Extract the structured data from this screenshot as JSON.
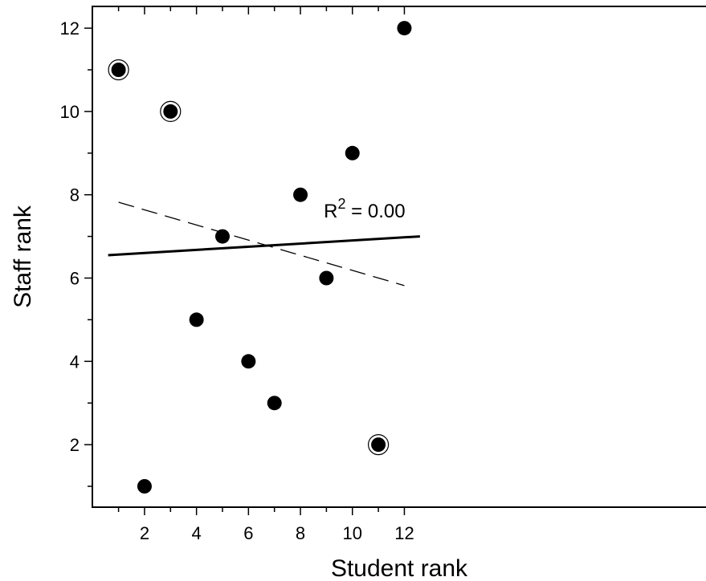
{
  "chart_data": {
    "type": "scatter",
    "xlabel": "Student rank",
    "ylabel": "Staff rank",
    "xlim": [
      0.5,
      12.5
    ],
    "ylim": [
      0.5,
      12.5
    ],
    "xticks": [
      2,
      4,
      6,
      8,
      10,
      12
    ],
    "yticks": [
      2,
      4,
      6,
      8,
      10,
      12
    ],
    "grid": false,
    "points": [
      {
        "x": 1,
        "y": 11,
        "circled": true
      },
      {
        "x": 2,
        "y": 1,
        "circled": false
      },
      {
        "x": 3,
        "y": 10,
        "circled": true
      },
      {
        "x": 4,
        "y": 5,
        "circled": false
      },
      {
        "x": 5,
        "y": 7,
        "circled": false
      },
      {
        "x": 6,
        "y": 4,
        "circled": false
      },
      {
        "x": 7,
        "y": 3,
        "circled": false
      },
      {
        "x": 8,
        "y": 8,
        "circled": false
      },
      {
        "x": 9,
        "y": 6,
        "circled": false
      },
      {
        "x": 10,
        "y": 9,
        "circled": false
      },
      {
        "x": 11,
        "y": 2,
        "circled": true
      },
      {
        "x": 12,
        "y": 12,
        "circled": false
      }
    ],
    "fit_lines": [
      {
        "style": "solid",
        "x": [
          0.6,
          12.6
        ],
        "y": [
          6.55,
          7.0
        ]
      },
      {
        "style": "dashed",
        "x": [
          1,
          12
        ],
        "y": [
          7.82,
          5.82
        ]
      }
    ],
    "annotation": {
      "base": "R",
      "superscript": "2",
      "rest": " = 0.00",
      "x": 8.9,
      "y": 7.45
    }
  }
}
